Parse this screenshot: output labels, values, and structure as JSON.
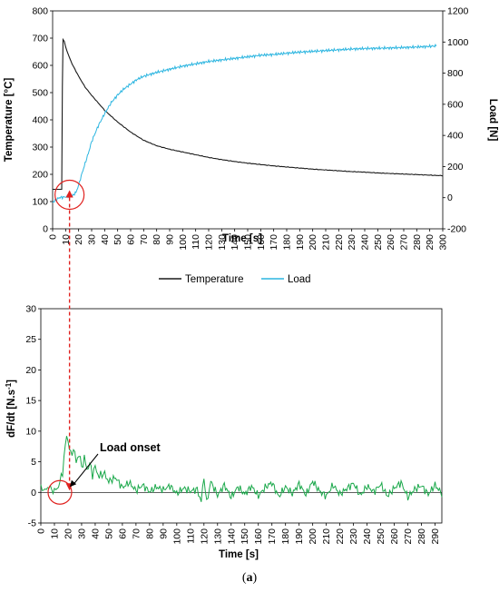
{
  "caption": {
    "open": "(",
    "letter": "a",
    "close": ")"
  },
  "colors": {
    "temperature": "#1a1a1a",
    "load": "#2bb5e0",
    "derivative": "#1aa84a",
    "annotation": "#e0221f"
  },
  "chart_data": [
    {
      "type": "line",
      "xlabel": "Time [s]",
      "ylabel_left": "Temperature [°C]",
      "ylabel_right": "Load [N]",
      "xlim": [
        0,
        300
      ],
      "ylim_left": [
        0,
        800
      ],
      "ylim_right": [
        -200,
        1200
      ],
      "x_ticks": [
        "0",
        "10",
        "20",
        "30",
        "40",
        "50",
        "60",
        "70",
        "80",
        "90",
        "100",
        "110",
        "120",
        "130",
        "140",
        "150",
        "160",
        "170",
        "180",
        "190",
        "200",
        "210",
        "220",
        "230",
        "240",
        "250",
        "260",
        "270",
        "280",
        "290",
        "300"
      ],
      "y_ticks_left": [
        "0",
        "100",
        "200",
        "300",
        "400",
        "500",
        "600",
        "700",
        "800"
      ],
      "y_ticks_right": [
        "-200",
        "0",
        "200",
        "400",
        "600",
        "800",
        "1000",
        "1200"
      ],
      "grid": false,
      "legend_position": "bottom",
      "series": [
        {
          "name": "Temperature",
          "axis": "left",
          "x": [
            0,
            7,
            7.5,
            8,
            9,
            10,
            12,
            15,
            20,
            25,
            30,
            40,
            50,
            60,
            70,
            80,
            90,
            100,
            110,
            120,
            130,
            140,
            150,
            160,
            170,
            180,
            190,
            200,
            210,
            220,
            230,
            240,
            250,
            260,
            270,
            280,
            290,
            300
          ],
          "values": [
            145,
            145,
            520,
            695,
            688,
            668,
            640,
            605,
            560,
            520,
            490,
            435,
            392,
            355,
            325,
            305,
            292,
            282,
            272,
            262,
            254,
            247,
            241,
            236,
            231,
            227,
            223,
            219,
            216,
            213,
            210,
            208,
            205,
            203,
            201,
            199,
            197,
            195
          ]
        },
        {
          "name": "Load",
          "axis": "right",
          "x": [
            0,
            5,
            10,
            15,
            18,
            20,
            22,
            25,
            28,
            30,
            35,
            40,
            45,
            50,
            55,
            60,
            65,
            70,
            80,
            90,
            100,
            110,
            120,
            130,
            140,
            150,
            160,
            170,
            180,
            190,
            200,
            210,
            220,
            230,
            240,
            250,
            260,
            270,
            280,
            290,
            295
          ],
          "values": [
            -30,
            0,
            5,
            10,
            35,
            80,
            140,
            220,
            300,
            360,
            460,
            540,
            610,
            660,
            700,
            730,
            760,
            780,
            805,
            825,
            845,
            860,
            875,
            885,
            895,
            905,
            915,
            920,
            928,
            935,
            940,
            945,
            950,
            955,
            958,
            960,
            962,
            965,
            968,
            972,
            975
          ]
        }
      ]
    },
    {
      "type": "line",
      "xlabel": "Time [s]",
      "ylabel": "dF/dt [N.s",
      "ylabel_sup": "-1",
      "ylabel_end": "]",
      "xlim": [
        0,
        295
      ],
      "ylim": [
        -5,
        30
      ],
      "x_ticks": [
        "0",
        "10",
        "20",
        "30",
        "40",
        "50",
        "60",
        "70",
        "80",
        "90",
        "100",
        "110",
        "120",
        "130",
        "140",
        "150",
        "160",
        "170",
        "180",
        "190",
        "200",
        "210",
        "220",
        "230",
        "240",
        "250",
        "260",
        "270",
        "280",
        "290"
      ],
      "y_ticks": [
        "-5",
        "0",
        "5",
        "10",
        "15",
        "20",
        "25",
        "30"
      ],
      "grid": false,
      "annotation": "Load onset",
      "series": [
        {
          "name": "",
          "x": [
            0,
            3,
            6,
            9,
            12,
            14,
            16,
            18,
            19,
            20,
            22,
            24,
            26,
            28,
            30,
            32,
            34,
            36,
            38,
            40,
            43,
            46,
            50,
            55,
            60,
            65,
            70,
            75,
            80,
            85,
            90,
            95,
            100,
            105,
            110,
            115,
            118,
            120,
            122,
            125,
            130,
            135,
            140,
            145,
            150,
            155,
            160,
            165,
            170,
            175,
            180,
            185,
            190,
            195,
            200,
            205,
            210,
            215,
            220,
            225,
            230,
            235,
            240,
            245,
            250,
            255,
            260,
            265,
            270,
            275,
            280,
            285,
            290,
            295
          ],
          "values": [
            0.8,
            0.3,
            1.0,
            0.2,
            0.6,
            1.5,
            3.5,
            7.5,
            9.3,
            8.5,
            6.0,
            7.2,
            5.0,
            6.3,
            4.2,
            5.5,
            3.8,
            4.6,
            3.0,
            4.1,
            2.5,
            3.2,
            1.8,
            2.4,
            0.8,
            1.6,
            0.3,
            1.2,
            0.1,
            0.9,
            0.4,
            1.1,
            -0.2,
            0.7,
            0.2,
            0.5,
            -1.5,
            2.6,
            -1.8,
            1.8,
            -0.5,
            1.2,
            -0.8,
            0.9,
            -0.3,
            1.0,
            -0.6,
            0.8,
            1.6,
            -0.7,
            0.9,
            -0.2,
            1.4,
            -0.4,
            1.8,
            0.2,
            -0.6,
            1.2,
            -0.3,
            0.6,
            1.5,
            -0.5,
            1.0,
            0.1,
            1.3,
            -0.6,
            0.7,
            1.6,
            -0.8,
            0.5,
            1.1,
            -0.3,
            1.2,
            -0.2
          ]
        }
      ]
    }
  ]
}
